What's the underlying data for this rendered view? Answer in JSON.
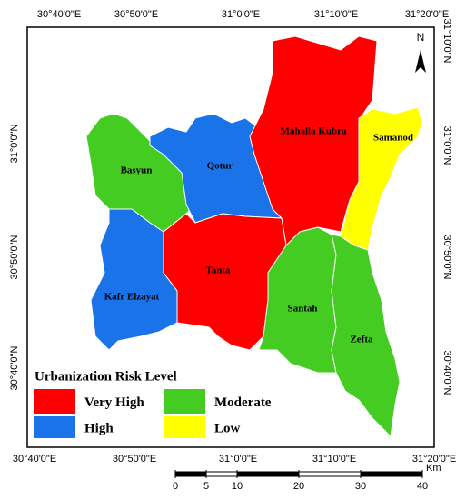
{
  "top_labels": [
    "30°40'0\"E",
    "30°50'0\"E",
    "31°0'0\"E",
    "31°10'0\"E",
    "31°20'0\"E"
  ],
  "bottom_labels": [
    "30°40'0\"E",
    "30°50'0\"E",
    "31°0'0\"E",
    "31°10'0\"E",
    "31°20'0\"E"
  ],
  "left_labels": [
    "31°0'0\"N",
    "30°50'0\"N",
    "30°40'0\"N"
  ],
  "right_labels": [
    "31°10'0\"N",
    "31°0'0\"N",
    "30°50'0\"N",
    "30°40'0\"N"
  ],
  "north_label": "N",
  "regions": [
    {
      "name": "Basyun",
      "level": 2
    },
    {
      "name": "Qotur",
      "level": 1
    },
    {
      "name": "Mahalla Kubra",
      "level": 0
    },
    {
      "name": "Samanod",
      "level": 3
    },
    {
      "name": "Kafr Elzayat",
      "level": 1
    },
    {
      "name": "Tanta",
      "level": 0
    },
    {
      "name": "Santah",
      "level": 2
    },
    {
      "name": "Zefta",
      "level": 2
    }
  ],
  "legend": {
    "title": "Urbanization Risk Level",
    "items": [
      {
        "label": "Very High",
        "color": "#ff0000"
      },
      {
        "label": "High",
        "color": "#1a73e8"
      },
      {
        "label": "Moderate",
        "color": "#44cc22"
      },
      {
        "label": "Low",
        "color": "#ffff00"
      }
    ]
  },
  "scale_bar": {
    "ticks": [
      0,
      5,
      10,
      20,
      30,
      40
    ],
    "unit": "Km"
  }
}
